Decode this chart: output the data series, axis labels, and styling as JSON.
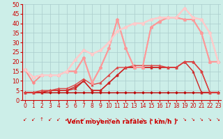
{
  "bg_color": "#cceee8",
  "grid_color": "#aacccc",
  "x_ticks": [
    0,
    1,
    2,
    3,
    4,
    5,
    6,
    7,
    8,
    9,
    10,
    11,
    12,
    13,
    14,
    15,
    16,
    17,
    18,
    19,
    20,
    21,
    22,
    23
  ],
  "xlim": [
    -0.3,
    23.3
  ],
  "ylim": [
    0,
    50
  ],
  "y_ticks": [
    0,
    5,
    10,
    15,
    20,
    25,
    30,
    35,
    40,
    45,
    50
  ],
  "xlabel": "Vent moyen/en rafales ( km/h )",
  "lines": [
    {
      "x": [
        0,
        1,
        2,
        3,
        4,
        5,
        6,
        7,
        8,
        9,
        10,
        11,
        12,
        13,
        14,
        15,
        16,
        17,
        18,
        19,
        20,
        21,
        22,
        23
      ],
      "y": [
        4,
        4,
        4,
        4,
        4,
        4,
        4,
        4,
        4,
        4,
        4,
        4,
        4,
        4,
        4,
        4,
        4,
        4,
        4,
        4,
        4,
        4,
        4,
        4
      ],
      "color": "#bb0000",
      "lw": 1.0,
      "marker": "D",
      "ms": 2.0
    },
    {
      "x": [
        0,
        1,
        2,
        3,
        4,
        5,
        6,
        7,
        8,
        9,
        10,
        11,
        12,
        13,
        14,
        15,
        16,
        17,
        18,
        19,
        20,
        21,
        22,
        23
      ],
      "y": [
        4,
        4,
        4,
        5,
        5,
        5,
        6,
        10,
        5,
        5,
        9,
        13,
        17,
        17,
        17,
        17,
        17,
        17,
        17,
        20,
        15,
        4,
        4,
        4
      ],
      "color": "#cc2222",
      "lw": 1.0,
      "marker": "^",
      "ms": 2.5
    },
    {
      "x": [
        0,
        1,
        2,
        3,
        4,
        5,
        6,
        7,
        8,
        9,
        10,
        11,
        12,
        13,
        14,
        15,
        16,
        17,
        18,
        19,
        20,
        21,
        22,
        23
      ],
      "y": [
        4,
        4,
        4,
        5,
        5,
        5,
        7,
        10,
        5,
        5,
        9,
        13,
        17,
        17,
        17,
        17,
        17,
        17,
        17,
        20,
        20,
        15,
        4,
        4
      ],
      "color": "#cc2222",
      "lw": 1.0,
      "marker": "D",
      "ms": 2.0
    },
    {
      "x": [
        0,
        1,
        2,
        3,
        4,
        5,
        6,
        7,
        8,
        9,
        10,
        11,
        12,
        13,
        14,
        15,
        16,
        17,
        18,
        19,
        20,
        21,
        22,
        23
      ],
      "y": [
        4,
        4,
        5,
        5,
        6,
        6,
        8,
        11,
        8,
        9,
        13,
        17,
        17,
        18,
        18,
        18,
        18,
        17,
        17,
        20,
        20,
        15,
        4,
        4
      ],
      "color": "#dd4444",
      "lw": 1.0,
      "marker": "^",
      "ms": 2.5
    },
    {
      "x": [
        0,
        1,
        2,
        3,
        4,
        5,
        6,
        7,
        8,
        9,
        10,
        11,
        12,
        13,
        14,
        15,
        16,
        17,
        18,
        19,
        20,
        21,
        22,
        23
      ],
      "y": [
        16,
        9,
        13,
        13,
        13,
        15,
        15,
        22,
        9,
        17,
        27,
        42,
        27,
        17,
        17,
        38,
        41,
        43,
        43,
        42,
        42,
        35,
        20,
        20
      ],
      "color": "#ff8888",
      "lw": 1.3,
      "marker": "D",
      "ms": 2.5
    },
    {
      "x": [
        0,
        1,
        2,
        3,
        4,
        5,
        6,
        7,
        8,
        9,
        10,
        11,
        12,
        13,
        14,
        15,
        16,
        17,
        18,
        19,
        20,
        21,
        22,
        23
      ],
      "y": [
        16,
        12,
        13,
        13,
        13,
        15,
        15,
        22,
        9,
        17,
        27,
        42,
        27,
        17,
        17,
        38,
        41,
        43,
        43,
        42,
        42,
        35,
        20,
        20
      ],
      "color": "#ff9999",
      "lw": 1.3,
      "marker": "^",
      "ms": 3.0
    },
    {
      "x": [
        0,
        1,
        2,
        3,
        4,
        5,
        6,
        7,
        8,
        9,
        10,
        11,
        12,
        13,
        14,
        15,
        16,
        17,
        18,
        19,
        20,
        21,
        22,
        23
      ],
      "y": [
        16,
        12,
        13,
        13,
        13,
        15,
        21,
        26,
        24,
        26,
        30,
        36,
        38,
        40,
        40,
        42,
        43,
        43,
        43,
        48,
        43,
        42,
        35,
        20
      ],
      "color": "#ffbbbb",
      "lw": 1.5,
      "marker": "D",
      "ms": 2.5
    },
    {
      "x": [
        0,
        1,
        2,
        3,
        4,
        5,
        6,
        7,
        8,
        9,
        10,
        11,
        12,
        13,
        14,
        15,
        16,
        17,
        18,
        19,
        20,
        21,
        22,
        23
      ],
      "y": [
        16,
        12,
        13,
        13,
        13,
        15,
        21,
        26,
        24,
        26,
        30,
        36,
        38,
        40,
        40,
        42,
        43,
        43,
        43,
        48,
        43,
        42,
        35,
        20
      ],
      "color": "#ffcccc",
      "lw": 1.5,
      "marker": "^",
      "ms": 3.0
    }
  ],
  "arrow_chars": [
    "↙",
    "↙",
    "↑",
    "↙",
    "↙",
    "↙",
    "↙",
    "↙",
    "↘",
    "↘",
    "↘",
    "↘",
    "↘",
    "↘",
    "↘",
    "↘",
    "↘",
    "↘",
    "↘",
    "↘",
    "↘",
    "↘",
    "↘",
    "↘"
  ]
}
